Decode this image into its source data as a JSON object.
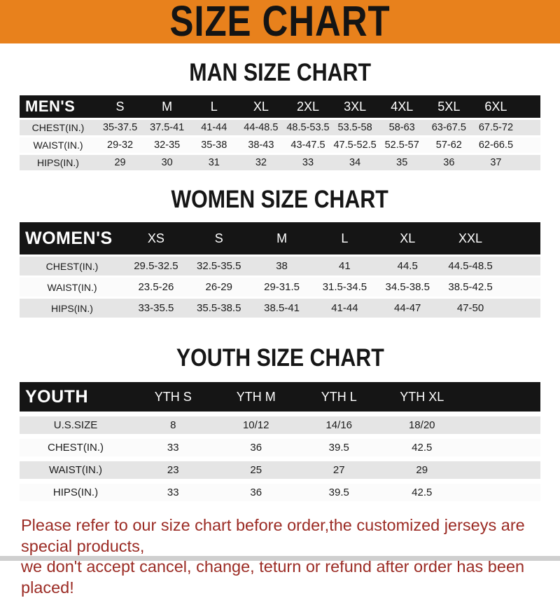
{
  "banner": {
    "title": "SIZE CHART",
    "bg_color": "#E8811C",
    "text_color": "#141414"
  },
  "colors": {
    "table_header_bg": "#151515",
    "row_gray": "#E5E5E5",
    "row_white": "#FBFBFB",
    "footer_text": "#9B2B24"
  },
  "sections": [
    {
      "heading": "MAN SIZE CHART",
      "header_label": "MEN'S",
      "columns": [
        "S",
        "M",
        "L",
        "XL",
        "2XL",
        "3XL",
        "4XL",
        "5XL",
        "6XL"
      ],
      "rows": [
        {
          "label": "CHEST(IN.)",
          "values": [
            "35-37.5",
            "37.5-41",
            "41-44",
            "44-48.5",
            "48.5-53.5",
            "53.5-58",
            "58-63",
            "63-67.5",
            "67.5-72"
          ]
        },
        {
          "label": "WAIST(IN.)",
          "values": [
            "29-32",
            "32-35",
            "35-38",
            "38-43",
            "43-47.5",
            "47.5-52.5",
            "52.5-57",
            "57-62",
            "62-66.5"
          ]
        },
        {
          "label": "HIPS(IN.)",
          "values": [
            "29",
            "30",
            "31",
            "32",
            "33",
            "34",
            "35",
            "36",
            "37"
          ]
        }
      ]
    },
    {
      "heading": "WOMEN SIZE CHART",
      "header_label": "WOMEN'S",
      "columns": [
        "XS",
        "S",
        "M",
        "L",
        "XL",
        "XXL"
      ],
      "rows": [
        {
          "label": "CHEST(IN.)",
          "values": [
            "29.5-32.5",
            "32.5-35.5",
            "38",
            "41",
            "44.5",
            "44.5-48.5"
          ]
        },
        {
          "label": "WAIST(IN.)",
          "values": [
            "23.5-26",
            "26-29",
            "29-31.5",
            "31.5-34.5",
            "34.5-38.5",
            "38.5-42.5"
          ]
        },
        {
          "label": "HIPS(IN.)",
          "values": [
            "33-35.5",
            "35.5-38.5",
            "38.5-41",
            "41-44",
            "44-47",
            "47-50"
          ]
        }
      ]
    },
    {
      "heading": "YOUTH SIZE CHART",
      "header_label": "YOUTH",
      "columns": [
        "YTH S",
        "YTH M",
        "YTH L",
        "YTH XL"
      ],
      "rows": [
        {
          "label": "U.S.SIZE",
          "values": [
            "8",
            "10/12",
            "14/16",
            "18/20"
          ]
        },
        {
          "label": "CHEST(IN.)",
          "values": [
            "33",
            "36",
            "39.5",
            "42.5"
          ]
        },
        {
          "label": "WAIST(IN.)",
          "values": [
            "23",
            "25",
            "27",
            "29"
          ]
        },
        {
          "label": "HIPS(IN.)",
          "values": [
            "33",
            "36",
            "39.5",
            "42.5"
          ]
        }
      ]
    }
  ],
  "footer": {
    "line1": "Please refer to our size chart before order,the customized jerseys are special products,",
    "line2": "we don't accept cancel, change, teturn or refund after order has been placed!"
  }
}
